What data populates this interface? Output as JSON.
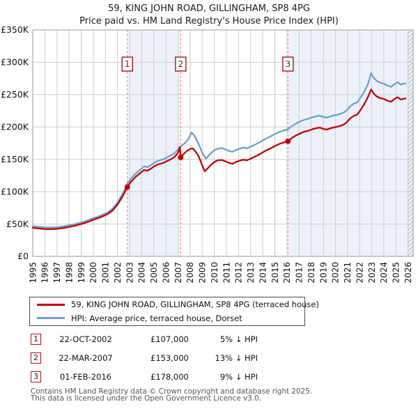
{
  "page": {
    "title": "59, KING JOHN ROAD, GILLINGHAM, SP8 4PG",
    "subtitle": "Price paid vs. HM Land Registry's House Price Index (HPI)"
  },
  "chart_data": {
    "type": "line",
    "title": "59, KING JOHN ROAD, GILLINGHAM, SP8 4PG",
    "subtitle": "Price paid vs. HM Land Registry's House Price Index (HPI)",
    "xlabel": "",
    "ylabel": "",
    "xlim": [
      1995,
      2026.42
    ],
    "ylim_k": [
      0,
      350
    ],
    "x_ticks": [
      1995,
      1996,
      1997,
      1998,
      1999,
      2000,
      2001,
      2002,
      2003,
      2004,
      2005,
      2006,
      2007,
      2008,
      2009,
      2010,
      2011,
      2012,
      2013,
      2014,
      2015,
      2016,
      2017,
      2018,
      2019,
      2020,
      2021,
      2022,
      2023,
      2024,
      2025,
      2026
    ],
    "y_ticks": [
      [
        0,
        "£0"
      ],
      [
        50,
        "£50K"
      ],
      [
        100,
        "£100K"
      ],
      [
        150,
        "£150K"
      ],
      [
        200,
        "£200K"
      ],
      [
        250,
        "£250K"
      ],
      [
        300,
        "£300K"
      ],
      [
        350,
        "£350K"
      ]
    ],
    "grid": true,
    "legend_position": "below",
    "colors": {
      "band": "#edf2fa",
      "grid": "#cccccc",
      "frame": "#9a9a9a",
      "sale_line": "#f4777c",
      "marker_box": "#b01111",
      "tick_text": "#101010"
    },
    "bands": [
      [
        2002.81,
        2007.22
      ],
      [
        2016.08,
        2026.42
      ]
    ],
    "hatch": [
      2025.97,
      2026.42
    ],
    "series": [
      {
        "name": "59, KING JOHN ROAD, GILLINGHAM, SP8 4PG (terraced house)",
        "color": "#c40000",
        "points": [
          [
            1995.0,
            44
          ],
          [
            1995.3,
            43.5
          ],
          [
            1995.7,
            42.8
          ],
          [
            1996.0,
            42.2
          ],
          [
            1996.4,
            42.0
          ],
          [
            1996.8,
            42.3
          ],
          [
            1997.2,
            43.0
          ],
          [
            1997.6,
            44.0
          ],
          [
            1998.0,
            45.5
          ],
          [
            1998.4,
            47.0
          ],
          [
            1998.8,
            49.0
          ],
          [
            1999.2,
            51.0
          ],
          [
            1999.6,
            53.5
          ],
          [
            2000.0,
            56.5
          ],
          [
            2000.4,
            59.0
          ],
          [
            2000.8,
            62.0
          ],
          [
            2001.2,
            65.5
          ],
          [
            2001.6,
            71.0
          ],
          [
            2002.0,
            80.0
          ],
          [
            2002.4,
            92.0
          ],
          [
            2002.81,
            107.0
          ],
          [
            2003.1,
            115.0
          ],
          [
            2003.5,
            123.0
          ],
          [
            2003.9,
            129.0
          ],
          [
            2004.2,
            133.5
          ],
          [
            2004.5,
            132.5
          ],
          [
            2004.8,
            136.0
          ],
          [
            2005.1,
            140.0
          ],
          [
            2005.4,
            142.5
          ],
          [
            2005.8,
            144.5
          ],
          [
            2006.1,
            147.5
          ],
          [
            2006.4,
            150.0
          ],
          [
            2006.7,
            153.5
          ],
          [
            2007.0,
            160.0
          ],
          [
            2007.15,
            169.0
          ],
          [
            2007.22,
            153.0
          ],
          [
            2007.4,
            157.0
          ],
          [
            2007.7,
            162.5
          ],
          [
            2008.0,
            166.0
          ],
          [
            2008.2,
            167.0
          ],
          [
            2008.45,
            162.0
          ],
          [
            2008.7,
            155.0
          ],
          [
            2008.95,
            143.0
          ],
          [
            2009.2,
            131.5
          ],
          [
            2009.45,
            136.0
          ],
          [
            2009.7,
            141.0
          ],
          [
            2010.0,
            146.0
          ],
          [
            2010.3,
            148.5
          ],
          [
            2010.6,
            149.0
          ],
          [
            2010.9,
            147.0
          ],
          [
            2011.2,
            144.5
          ],
          [
            2011.5,
            143.0
          ],
          [
            2011.8,
            146.0
          ],
          [
            2012.1,
            148.0
          ],
          [
            2012.4,
            149.5
          ],
          [
            2012.7,
            148.5
          ],
          [
            2013.0,
            151.0
          ],
          [
            2013.4,
            154.5
          ],
          [
            2013.8,
            158.5
          ],
          [
            2014.2,
            163.0
          ],
          [
            2014.6,
            166.5
          ],
          [
            2015.0,
            170.5
          ],
          [
            2015.4,
            174.0
          ],
          [
            2015.8,
            176.5
          ],
          [
            2016.08,
            178.0
          ],
          [
            2016.4,
            183.0
          ],
          [
            2016.8,
            187.5
          ],
          [
            2017.1,
            190.0
          ],
          [
            2017.4,
            192.5
          ],
          [
            2017.8,
            194.5
          ],
          [
            2018.1,
            196.5
          ],
          [
            2018.4,
            198.0
          ],
          [
            2018.7,
            199.0
          ],
          [
            2019.0,
            197.0
          ],
          [
            2019.3,
            196.0
          ],
          [
            2019.6,
            198.0
          ],
          [
            2019.9,
            199.5
          ],
          [
            2020.2,
            200.5
          ],
          [
            2020.6,
            203.0
          ],
          [
            2020.9,
            206.5
          ],
          [
            2021.2,
            213.0
          ],
          [
            2021.5,
            217.0
          ],
          [
            2021.8,
            219.0
          ],
          [
            2022.1,
            227.0
          ],
          [
            2022.4,
            236.0
          ],
          [
            2022.7,
            247.0
          ],
          [
            2022.95,
            258.0
          ],
          [
            2023.15,
            252.0
          ],
          [
            2023.4,
            247.5
          ],
          [
            2023.7,
            244.5
          ],
          [
            2024.0,
            243.5
          ],
          [
            2024.3,
            240.5
          ],
          [
            2024.6,
            239.0
          ],
          [
            2024.9,
            243.5
          ],
          [
            2025.15,
            246.0
          ],
          [
            2025.4,
            242.5
          ],
          [
            2025.6,
            243.5
          ],
          [
            2025.8,
            244.0
          ]
        ]
      },
      {
        "name": "HPI: Average price, terraced house, Dorset",
        "color": "#6e9ecf",
        "points": [
          [
            1995.0,
            46.5
          ],
          [
            1995.3,
            46.0
          ],
          [
            1995.7,
            45.3
          ],
          [
            1996.0,
            44.8
          ],
          [
            1996.4,
            44.5
          ],
          [
            1996.8,
            44.8
          ],
          [
            1997.2,
            45.5
          ],
          [
            1997.6,
            46.5
          ],
          [
            1998.0,
            48.0
          ],
          [
            1998.4,
            49.5
          ],
          [
            1998.8,
            51.5
          ],
          [
            1999.2,
            53.5
          ],
          [
            1999.6,
            56.0
          ],
          [
            2000.0,
            59.0
          ],
          [
            2000.4,
            61.5
          ],
          [
            2000.8,
            64.5
          ],
          [
            2001.2,
            68.0
          ],
          [
            2001.6,
            74.0
          ],
          [
            2002.0,
            83.5
          ],
          [
            2002.4,
            96.0
          ],
          [
            2002.81,
            112.0
          ],
          [
            2003.1,
            120.0
          ],
          [
            2003.5,
            128.0
          ],
          [
            2003.9,
            134.5
          ],
          [
            2004.2,
            139.0
          ],
          [
            2004.5,
            138.0
          ],
          [
            2004.8,
            141.5
          ],
          [
            2005.1,
            145.5
          ],
          [
            2005.4,
            148.0
          ],
          [
            2005.8,
            150.0
          ],
          [
            2006.1,
            153.0
          ],
          [
            2006.4,
            156.0
          ],
          [
            2006.7,
            159.5
          ],
          [
            2007.0,
            165.0
          ],
          [
            2007.2,
            169.5
          ],
          [
            2007.4,
            172.5
          ],
          [
            2007.7,
            177.5
          ],
          [
            2008.0,
            186.0
          ],
          [
            2008.1,
            191.5
          ],
          [
            2008.3,
            188.0
          ],
          [
            2008.5,
            181.0
          ],
          [
            2008.75,
            172.0
          ],
          [
            2009.0,
            160.0
          ],
          [
            2009.3,
            151.0
          ],
          [
            2009.5,
            155.0
          ],
          [
            2009.7,
            159.0
          ],
          [
            2010.0,
            164.0
          ],
          [
            2010.3,
            166.5
          ],
          [
            2010.6,
            167.5
          ],
          [
            2010.9,
            165.5
          ],
          [
            2011.2,
            163.0
          ],
          [
            2011.5,
            161.5
          ],
          [
            2011.8,
            164.5
          ],
          [
            2012.1,
            166.5
          ],
          [
            2012.4,
            168.0
          ],
          [
            2012.7,
            167.0
          ],
          [
            2013.0,
            169.5
          ],
          [
            2013.4,
            173.0
          ],
          [
            2013.8,
            177.0
          ],
          [
            2014.2,
            181.5
          ],
          [
            2014.6,
            185.0
          ],
          [
            2015.0,
            189.0
          ],
          [
            2015.4,
            192.5
          ],
          [
            2015.8,
            195.0
          ],
          [
            2016.08,
            196.5
          ],
          [
            2016.4,
            201.5
          ],
          [
            2016.8,
            206.0
          ],
          [
            2017.1,
            208.5
          ],
          [
            2017.4,
            211.0
          ],
          [
            2017.8,
            213.0
          ],
          [
            2018.1,
            215.0
          ],
          [
            2018.4,
            216.5
          ],
          [
            2018.7,
            217.5
          ],
          [
            2019.0,
            215.5
          ],
          [
            2019.3,
            214.5
          ],
          [
            2019.6,
            216.5
          ],
          [
            2019.9,
            218.0
          ],
          [
            2020.2,
            219.0
          ],
          [
            2020.6,
            221.5
          ],
          [
            2020.9,
            225.0
          ],
          [
            2021.2,
            231.5
          ],
          [
            2021.5,
            236.0
          ],
          [
            2021.8,
            238.0
          ],
          [
            2022.1,
            246.0
          ],
          [
            2022.4,
            255.0
          ],
          [
            2022.7,
            267.0
          ],
          [
            2022.95,
            283.0
          ],
          [
            2023.15,
            276.5
          ],
          [
            2023.4,
            271.5
          ],
          [
            2023.7,
            268.5
          ],
          [
            2024.0,
            267.0
          ],
          [
            2024.3,
            264.0
          ],
          [
            2024.6,
            262.0
          ],
          [
            2024.9,
            266.5
          ],
          [
            2025.15,
            269.0
          ],
          [
            2025.4,
            265.5
          ],
          [
            2025.6,
            267.0
          ],
          [
            2025.8,
            267.5
          ]
        ]
      }
    ],
    "sales": [
      {
        "label": "1",
        "year": 2002.81,
        "value_k": 107
      },
      {
        "label": "2",
        "year": 2007.22,
        "value_k": 153
      },
      {
        "label": "3",
        "year": 2016.08,
        "value_k": 178
      }
    ]
  },
  "annotations": [
    {
      "num": "1",
      "date": "22-OCT-2002",
      "price": "£107,000",
      "delta": "5% ↓ HPI"
    },
    {
      "num": "2",
      "date": "22-MAR-2007",
      "price": "£153,000",
      "delta": "13% ↓ HPI"
    },
    {
      "num": "3",
      "date": "01-FEB-2016",
      "price": "£178,000",
      "delta": "9% ↓ HPI"
    }
  ],
  "footer": {
    "line1": "Contains HM Land Registry data © Crown copyright and database right 2025.",
    "line2": "This data is licensed under the Open Government Licence v3.0."
  }
}
